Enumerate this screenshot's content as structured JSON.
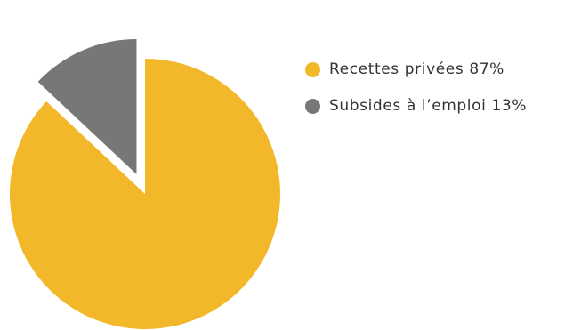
{
  "chart_data": {
    "type": "pie",
    "exploded": true,
    "legend_position": "right",
    "slices": [
      {
        "label": "Recettes privées",
        "value": 87,
        "display": "87%",
        "color": "#F3B72A"
      },
      {
        "label": "Subsides à l’emploi",
        "value": 13,
        "display": "13%",
        "color": "#777777"
      }
    ]
  }
}
